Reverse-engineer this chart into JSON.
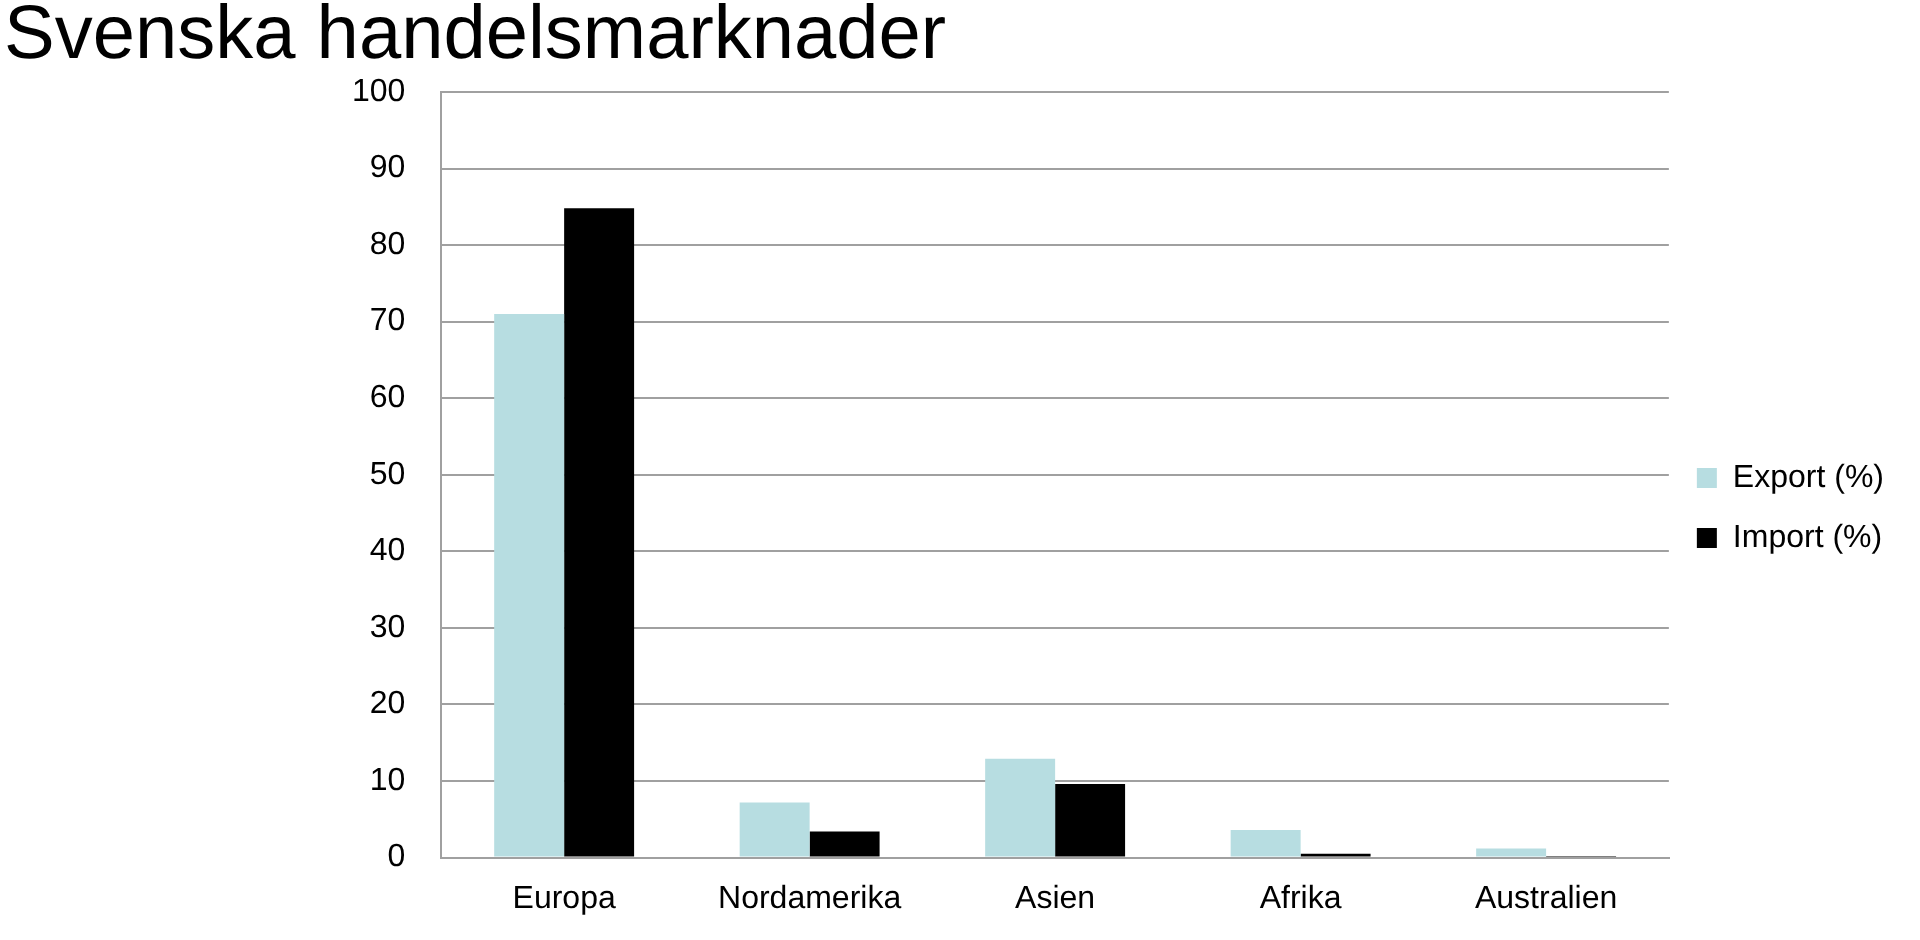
{
  "chart_data": {
    "type": "bar",
    "title": "Svenska handelsmarknader",
    "categories": [
      "Europa",
      "Nordamerika",
      "Asien",
      "Afrika",
      "Australien"
    ],
    "series": [
      {
        "name": "Export (%)",
        "color": "#b7dde1",
        "values": [
          71,
          7.2,
          12.9,
          3.6,
          1.2
        ]
      },
      {
        "name": "Import (%)",
        "color": "#000000",
        "values": [
          84.8,
          3.4,
          9.6,
          0.5,
          0.2
        ]
      }
    ],
    "ylim": [
      0,
      100
    ],
    "yticks": [
      0,
      10,
      20,
      30,
      40,
      50,
      60,
      70,
      80,
      90,
      100
    ],
    "grid": "y",
    "legend": "right"
  }
}
